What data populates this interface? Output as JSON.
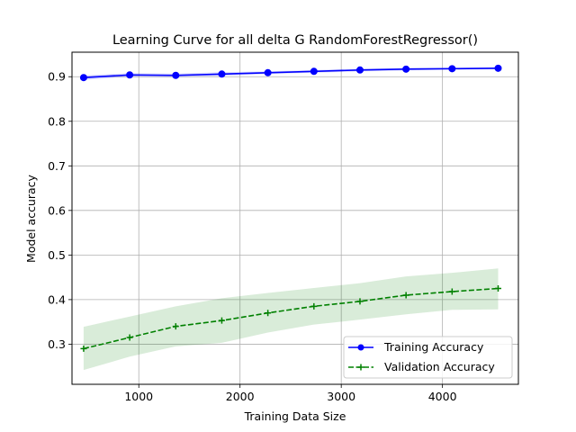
{
  "chart_data": {
    "type": "line",
    "title": "Learning Curve for all delta G RandomForestRegressor()",
    "xlabel": "Training Data Size",
    "ylabel": "Model accuracy",
    "xlim": [
      340,
      4750
    ],
    "ylim": [
      0.21,
      0.955
    ],
    "xticks": [
      1000,
      2000,
      3000,
      4000
    ],
    "yticks": [
      0.3,
      0.4,
      0.5,
      0.6,
      0.7,
      0.8,
      0.9
    ],
    "xtick_labels": [
      "1000",
      "2000",
      "3000",
      "4000"
    ],
    "ytick_labels": [
      "0.3",
      "0.4",
      "0.5",
      "0.6",
      "0.7",
      "0.8",
      "0.9"
    ],
    "grid": true,
    "legend_position": "lower-right",
    "x": [
      455,
      910,
      1365,
      1820,
      2275,
      2730,
      3185,
      3640,
      4095,
      4550
    ],
    "series": [
      {
        "name": "Training Accuracy",
        "color": "#0000ff",
        "marker": "circle",
        "linestyle": "solid",
        "values": [
          0.898,
          0.904,
          0.903,
          0.906,
          0.909,
          0.912,
          0.915,
          0.917,
          0.918,
          0.919
        ],
        "band_lower": [
          0.893,
          0.9,
          0.899,
          0.902,
          0.906,
          0.909,
          0.912,
          0.914,
          0.916,
          0.917
        ],
        "band_upper": [
          0.903,
          0.908,
          0.907,
          0.91,
          0.912,
          0.915,
          0.918,
          0.92,
          0.92,
          0.921
        ]
      },
      {
        "name": "Validation Accuracy",
        "color": "#008000",
        "marker": "plus",
        "linestyle": "dashed",
        "values": [
          0.29,
          0.315,
          0.34,
          0.353,
          0.37,
          0.385,
          0.396,
          0.41,
          0.418,
          0.425
        ],
        "band_lower": [
          0.242,
          0.272,
          0.295,
          0.303,
          0.326,
          0.344,
          0.355,
          0.367,
          0.377,
          0.378
        ],
        "band_upper": [
          0.339,
          0.362,
          0.385,
          0.403,
          0.415,
          0.426,
          0.437,
          0.452,
          0.46,
          0.47
        ]
      }
    ]
  }
}
